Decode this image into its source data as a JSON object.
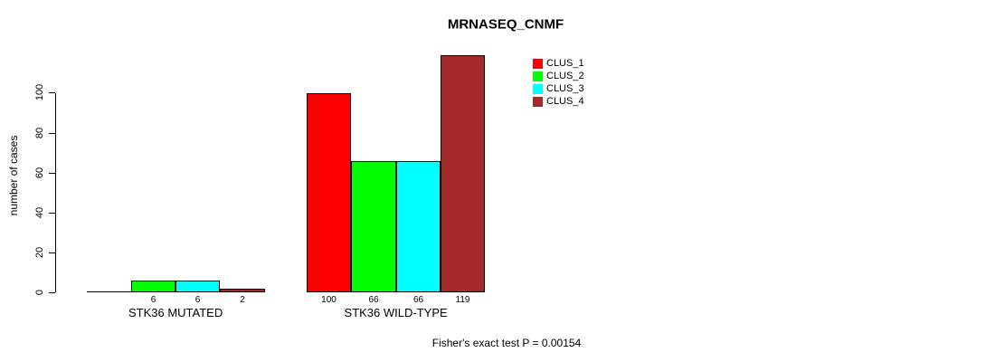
{
  "title": "MRNASEQ_CNMF",
  "chart_data": {
    "type": "bar",
    "title": "MRNASEQ_CNMF",
    "xlabel": "",
    "ylabel": "number of cases",
    "ylim": [
      0,
      100
    ],
    "yticks": [
      0,
      20,
      40,
      60,
      80,
      100
    ],
    "grid": false,
    "legend_position": "top-right",
    "categories": [
      "STK36 MUTATED",
      "STK36 WILD-TYPE"
    ],
    "series": [
      {
        "name": "CLUS_1",
        "color": "#ff0000",
        "values": [
          0,
          100
        ],
        "bar_labels": [
          "",
          "100"
        ]
      },
      {
        "name": "CLUS_2",
        "color": "#00ff00",
        "values": [
          6,
          66
        ],
        "bar_labels": [
          "6",
          "66"
        ]
      },
      {
        "name": "CLUS_3",
        "color": "#00ffff",
        "values": [
          6,
          66
        ],
        "bar_labels": [
          "6",
          "66"
        ]
      },
      {
        "name": "CLUS_4",
        "color": "#a52a2a",
        "values": [
          2,
          119
        ],
        "bar_labels": [
          "2",
          "119"
        ]
      }
    ],
    "annotation": "Fisher's exact test P = 0.00154"
  }
}
